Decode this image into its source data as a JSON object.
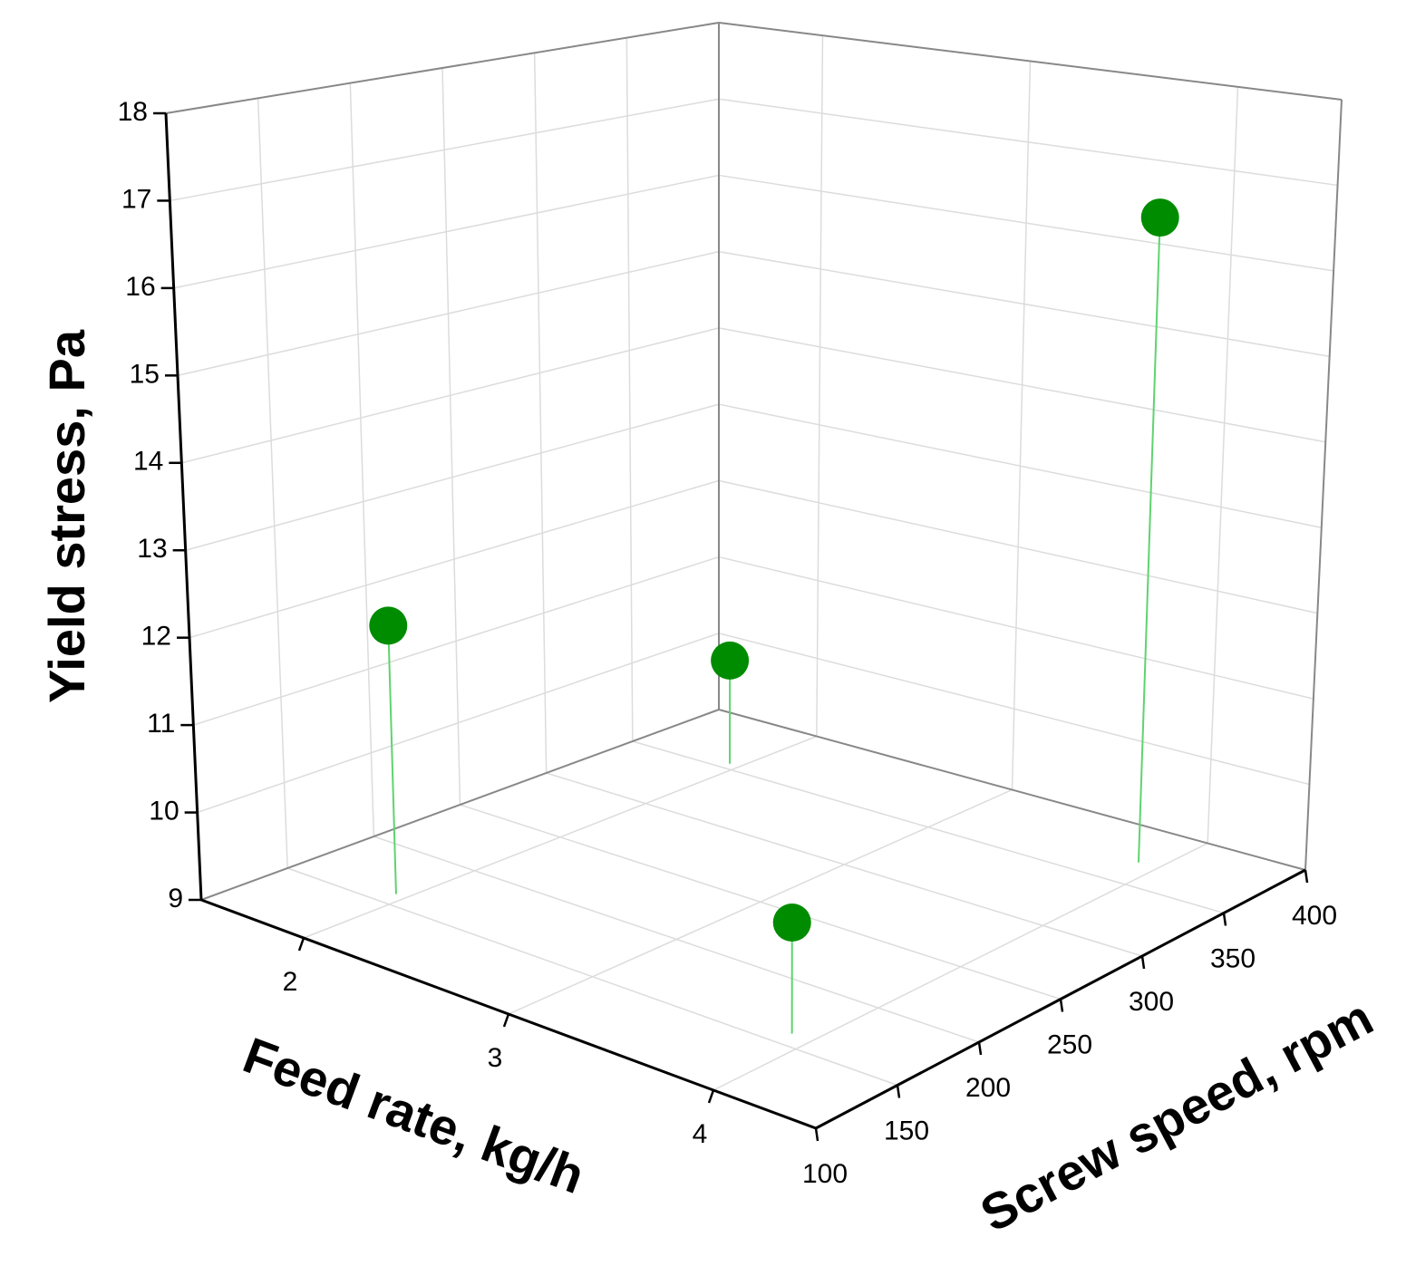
{
  "chart_data": {
    "type": "scatter3d",
    "x_label": "Feed rate, kg/h",
    "y_label": "Screw speed, rpm",
    "z_label": "Yield stress, Pa",
    "x": [
      1.95,
      1.95,
      3.9,
      3.9
    ],
    "y": [
      160,
      355,
      160,
      370
    ],
    "z": [
      12.1,
      10.3,
      10.2,
      16.6
    ],
    "color": "#008c00",
    "xlim": [
      1.5,
      4.5
    ],
    "xticks": [
      2,
      3,
      4
    ],
    "ylim": [
      100,
      400
    ],
    "yticks": [
      100,
      150,
      200,
      250,
      300,
      350,
      400
    ],
    "zlim": [
      9,
      18
    ],
    "zticks": [
      9,
      10,
      11,
      12,
      13,
      14,
      15,
      16,
      17,
      18
    ],
    "grid": true
  }
}
